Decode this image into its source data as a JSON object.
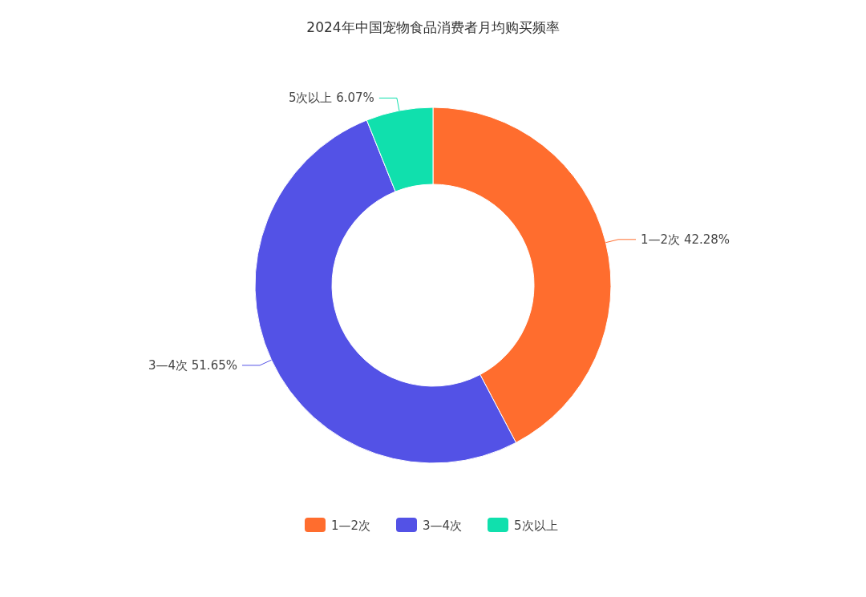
{
  "chart_data": {
    "type": "donut",
    "title": "2024年中国宠物食品消费者月均购买频率",
    "categories": [
      "1—2次",
      "3—4次",
      "5次以上"
    ],
    "values": [
      42.28,
      51.65,
      6.07
    ],
    "colors": [
      "#ff6d2e",
      "#5352e6",
      "#10e0ad"
    ],
    "value_labels": [
      "42.28%",
      "51.65%",
      "6.07%"
    ],
    "legend": "bottom"
  }
}
